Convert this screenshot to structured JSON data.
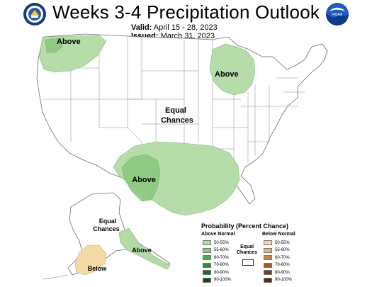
{
  "header": {
    "title": "Weeks 3-4 Precipitation Outlook",
    "valid_label": "Valid:",
    "valid_value": "April 15 - 28, 2023",
    "issued_label": "Issued:",
    "issued_value": "March 31, 2023",
    "noaa_text": "NOAA"
  },
  "map_labels": {
    "pacific_nw": "Above",
    "great_lakes": "Above",
    "equal_line1": "Equal",
    "equal_line2": "Chances",
    "southern_plains": "Above",
    "alaska_equal_line1": "Equal",
    "alaska_equal_line2": "Chances",
    "alaska_below": "Below",
    "alaska_above": "Above"
  },
  "legend": {
    "title": "Probability (Percent Chance)",
    "above_header": "Above Normal",
    "below_header": "Below Normal",
    "equal_line1": "Equal",
    "equal_line2": "Chances",
    "above_items": [
      {
        "label": "50-55%",
        "color": "#b3dba6"
      },
      {
        "label": "55-60%",
        "color": "#8dca80"
      },
      {
        "label": "60-70%",
        "color": "#52ab52"
      },
      {
        "label": "70-80%",
        "color": "#2c8a3a"
      },
      {
        "label": "80-90%",
        "color": "#1b6a2a"
      },
      {
        "label": "90-100%",
        "color": "#0d4a1a"
      }
    ],
    "below_items": [
      {
        "label": "50-55%",
        "color": "#f3d9a3"
      },
      {
        "label": "55-60%",
        "color": "#e5b577"
      },
      {
        "label": "60-70%",
        "color": "#c98745"
      },
      {
        "label": "70-80%",
        "color": "#a15b26"
      },
      {
        "label": "80-90%",
        "color": "#7d3e18"
      },
      {
        "label": "90-100%",
        "color": "#5a2a10"
      }
    ]
  },
  "colors": {
    "above_light": "#b3dba6",
    "above_mid": "#8dca80",
    "below_light": "#f3d9a3",
    "border": "#6a6a6a"
  }
}
